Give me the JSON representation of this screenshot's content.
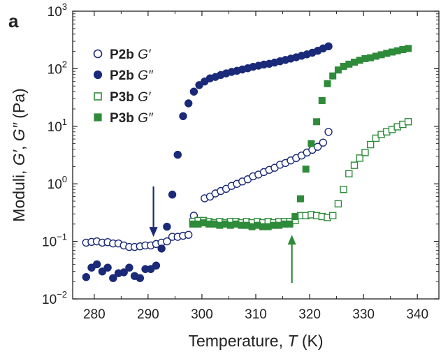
{
  "panel_label": "a",
  "chart_data": {
    "type": "scatter",
    "title": "",
    "xlabel_parts": {
      "text": "Temperature, ",
      "var": "T",
      "unit": " (K)"
    },
    "ylabel_parts": {
      "text": "Moduli, ",
      "g1": "G′",
      "sep": ", ",
      "g2": "G″",
      "unit": " (Pa)"
    },
    "xlim": [
      276,
      344
    ],
    "ylim": [
      0.01,
      1000
    ],
    "y_scale": "log",
    "x_ticks": [
      280,
      290,
      300,
      310,
      320,
      330,
      340
    ],
    "x_tick_labels": [
      "280",
      "290",
      "300",
      "310",
      "320",
      "330",
      "340"
    ],
    "y_ticks": [
      0.01,
      0.1,
      1,
      10,
      100,
      1000
    ],
    "y_tick_labels": [
      {
        "base": "10",
        "exp": "−2"
      },
      {
        "base": "10",
        "exp": "−1"
      },
      {
        "base": "10",
        "exp": "0"
      },
      {
        "base": "10",
        "exp": "1"
      },
      {
        "base": "10",
        "exp": "2"
      },
      {
        "base": "10",
        "exp": "3"
      }
    ],
    "grid": false,
    "legend_position": "top-left",
    "colors": {
      "p2b": "#1b2a78",
      "p3b": "#2e8b3a"
    },
    "series": [
      {
        "name_bold": "P2b",
        "name_var": "G′",
        "marker": "circle-open",
        "color": "#1b2a78",
        "x": [
          278.5,
          279.5,
          280.5,
          281.5,
          282.5,
          283.5,
          284.5,
          285.5,
          286.5,
          287.5,
          288.5,
          289.5,
          290.5,
          291.5,
          292.5,
          293.5,
          294.5,
          295.5,
          296.5,
          297.5,
          298.5,
          299.5,
          300.5,
          301.5,
          302.5,
          303.5,
          304.5,
          305.5,
          306.5,
          307.5,
          308.5,
          309.5,
          310.5,
          311.5,
          312.5,
          313.5,
          314.5,
          315.5,
          316.5,
          317.5,
          318.5,
          319.5,
          320.5,
          321.5,
          322.5,
          323.5
        ],
        "y": [
          0.095,
          0.098,
          0.1,
          0.095,
          0.097,
          0.092,
          0.092,
          0.085,
          0.08,
          0.08,
          0.082,
          0.085,
          0.085,
          0.09,
          0.095,
          0.1,
          0.12,
          0.12,
          0.125,
          0.13,
          0.28,
          0.22,
          0.56,
          0.6,
          0.68,
          0.75,
          0.82,
          0.92,
          1.0,
          1.1,
          1.2,
          1.35,
          1.45,
          1.6,
          1.75,
          1.9,
          2.15,
          2.3,
          2.55,
          2.8,
          3.1,
          3.5,
          3.9,
          4.4,
          5.2,
          8.0
        ]
      },
      {
        "name_bold": "P2b",
        "name_var": "G″",
        "marker": "circle-filled",
        "color": "#1b2a78",
        "x": [
          278.5,
          279.5,
          280.5,
          281.5,
          282.5,
          283.5,
          284.5,
          285.5,
          286.5,
          287.5,
          288.5,
          289.5,
          290.5,
          291.5,
          292.5,
          293.5,
          294.5,
          295.5,
          296.5,
          297.5,
          298.5,
          299.5,
          300.5,
          301.5,
          302.5,
          303.5,
          304.5,
          305.5,
          306.5,
          307.5,
          308.5,
          309.5,
          310.5,
          311.5,
          312.5,
          313.5,
          314.5,
          315.5,
          316.5,
          317.5,
          318.5,
          319.5,
          320.5,
          321.5,
          322.5,
          323.5
        ],
        "y": [
          0.024,
          0.035,
          0.04,
          0.03,
          0.035,
          0.023,
          0.028,
          0.029,
          0.035,
          0.025,
          0.023,
          0.033,
          0.033,
          0.038,
          0.075,
          0.18,
          0.65,
          3.2,
          15,
          25,
          40,
          52,
          60,
          68,
          72,
          78,
          83,
          88,
          92,
          97,
          102,
          108,
          113,
          118,
          122,
          128,
          135,
          142,
          150,
          158,
          168,
          178,
          190,
          205,
          225,
          245
        ]
      },
      {
        "name_bold": "P3b",
        "name_var": "G′",
        "marker": "square-open",
        "color": "#2e8b3a",
        "x": [
          298.3,
          299.3,
          300.3,
          301.3,
          302.3,
          303.3,
          304.3,
          305.3,
          306.3,
          307.3,
          308.3,
          309.3,
          310.3,
          311.3,
          312.3,
          313.3,
          314.3,
          315.3,
          316.3,
          317.3,
          318.3,
          319.3,
          320.3,
          321.3,
          322.3,
          323.3,
          324.3,
          325.3,
          326.3,
          327.3,
          328.3,
          329.3,
          330.3,
          331.3,
          332.3,
          333.3,
          334.3,
          335.3,
          336.3,
          337.3,
          338.3
        ],
        "y": [
          0.22,
          0.23,
          0.23,
          0.22,
          0.21,
          0.22,
          0.21,
          0.22,
          0.22,
          0.21,
          0.22,
          0.21,
          0.22,
          0.21,
          0.22,
          0.21,
          0.22,
          0.22,
          0.22,
          0.23,
          0.28,
          0.28,
          0.29,
          0.28,
          0.27,
          0.26,
          0.28,
          0.45,
          0.8,
          1.5,
          2.1,
          2.8,
          3.5,
          4.8,
          6.2,
          7.2,
          8.0,
          8.8,
          9.8,
          10.8,
          12.0
        ]
      },
      {
        "name_bold": "P3b",
        "name_var": "G″",
        "marker": "square-filled",
        "color": "#2e8b3a",
        "x": [
          298.3,
          299.3,
          300.3,
          301.3,
          302.3,
          303.3,
          304.3,
          305.3,
          306.3,
          307.3,
          308.3,
          309.3,
          310.3,
          311.3,
          312.3,
          313.3,
          314.3,
          315.3,
          316.3,
          317.3,
          318.3,
          319.3,
          320.3,
          321.3,
          322.3,
          323.3,
          324.3,
          325.3,
          326.3,
          327.3,
          328.3,
          329.3,
          330.3,
          331.3,
          332.3,
          333.3,
          334.3,
          335.3,
          336.3,
          337.3,
          338.3
        ],
        "y": [
          0.2,
          0.2,
          0.21,
          0.2,
          0.2,
          0.19,
          0.2,
          0.19,
          0.2,
          0.19,
          0.19,
          0.18,
          0.19,
          0.18,
          0.18,
          0.19,
          0.19,
          0.2,
          0.2,
          0.27,
          0.55,
          1.8,
          5.0,
          12,
          28,
          55,
          75,
          95,
          110,
          120,
          130,
          140,
          150,
          155,
          165,
          175,
          185,
          195,
          205,
          215,
          225
        ]
      }
    ],
    "annotations": [
      {
        "type": "arrow",
        "direction": "down",
        "x": 291,
        "y_from": 0.9,
        "y_to": 0.12,
        "color": "#1b2a78"
      },
      {
        "type": "arrow",
        "direction": "up",
        "x": 316.7,
        "y_from": 0.019,
        "y_to": 0.13,
        "color": "#2e8b3a"
      }
    ]
  }
}
